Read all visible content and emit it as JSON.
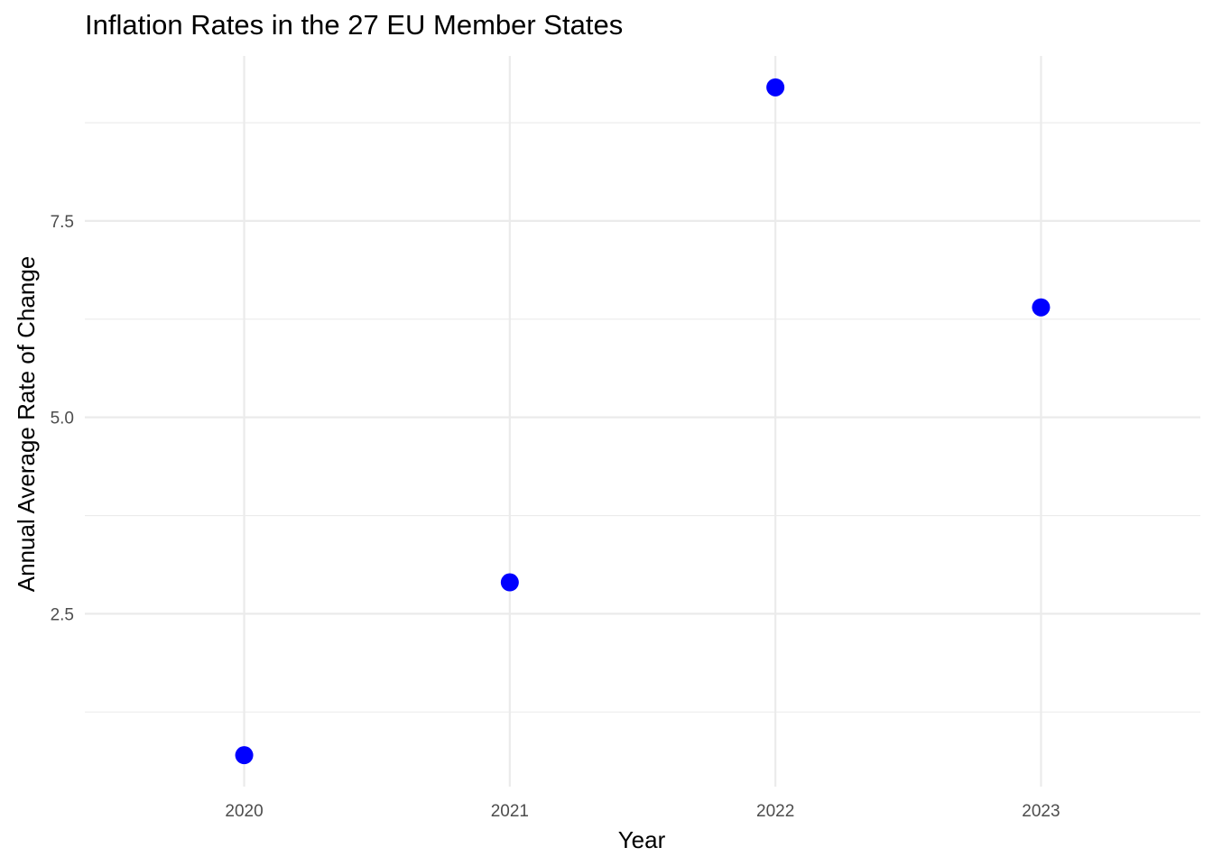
{
  "chart_data": {
    "type": "scatter",
    "title": "Inflation Rates in the 27 EU Member States",
    "xlabel": "Year",
    "ylabel": "Annual Average Rate of Change",
    "x": [
      2020,
      2021,
      2022,
      2023
    ],
    "y": [
      0.7,
      2.9,
      9.2,
      6.4
    ],
    "xlim": [
      2019.4,
      2023.6
    ],
    "ylim": [
      0.3,
      9.6
    ],
    "x_ticks": [
      2020,
      2021,
      2022,
      2023
    ],
    "x_tick_labels": [
      "2020",
      "2021",
      "2022",
      "2023"
    ],
    "y_ticks": [
      2.5,
      5.0,
      7.5
    ],
    "y_tick_labels": [
      "2.5",
      "5.0",
      "7.5"
    ],
    "y_minor_ticks": [
      1.25,
      3.75,
      6.25,
      8.75
    ],
    "grid": true,
    "legend": "none",
    "point_color": "#0000ff",
    "background": "#ffffff"
  }
}
